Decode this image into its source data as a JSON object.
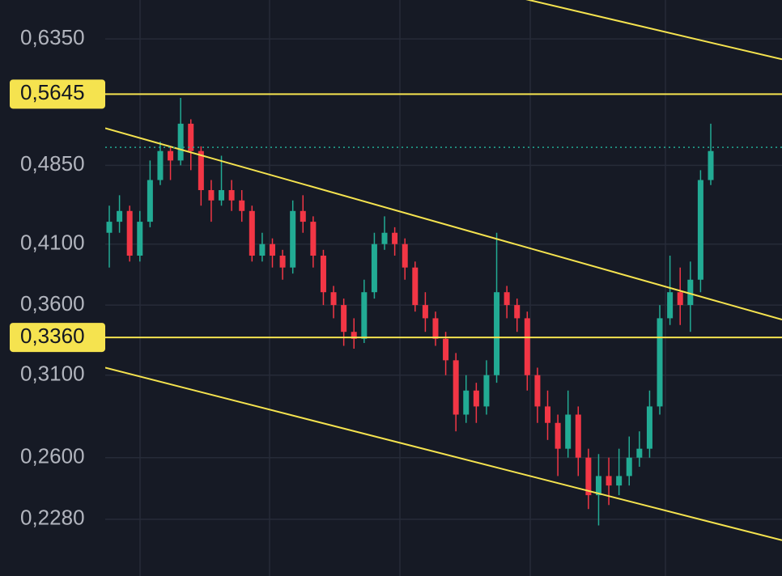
{
  "chart_data": {
    "type": "candlestick",
    "log_scale": true,
    "grid": true,
    "ylim": [
      0.202,
      0.69
    ],
    "yticks": [
      {
        "value": 0.635,
        "label": "0,6350"
      },
      {
        "value": 0.485,
        "label": "0,4850"
      },
      {
        "value": 0.41,
        "label": "0,4100"
      },
      {
        "value": 0.36,
        "label": "0,3600"
      },
      {
        "value": 0.31,
        "label": "0,3100"
      },
      {
        "value": 0.26,
        "label": "0,2600"
      },
      {
        "value": 0.228,
        "label": "0,2280"
      }
    ],
    "categories": [
      null,
      null,
      null,
      null,
      null,
      null,
      null,
      null,
      null,
      null,
      null,
      null,
      null,
      null,
      null,
      null,
      null,
      null,
      null,
      null,
      null,
      null,
      null,
      null,
      null,
      null,
      null,
      null,
      null,
      null,
      null,
      null,
      null,
      null,
      null,
      null,
      null,
      null,
      null,
      null,
      null,
      null,
      null,
      null,
      null,
      null,
      null,
      null,
      null,
      null,
      null,
      null,
      null,
      null,
      null,
      null,
      null,
      null,
      null,
      null
    ],
    "series": [
      {
        "up_color": "#22ab94",
        "down_color": "#f23645",
        "open": [
          0.42,
          0.43,
          0.44,
          0.4,
          0.43,
          0.47,
          0.5,
          0.49,
          0.53,
          0.5,
          0.46,
          0.45,
          0.46,
          0.45,
          0.44,
          0.4,
          0.41,
          0.4,
          0.39,
          0.44,
          0.43,
          0.4,
          0.37,
          0.36,
          0.34,
          0.335,
          0.37,
          0.41,
          0.42,
          0.41,
          0.39,
          0.36,
          0.35,
          0.335,
          0.32,
          0.285,
          0.3,
          0.29,
          0.31,
          0.37,
          0.36,
          0.35,
          0.31,
          0.29,
          0.28,
          0.265,
          0.285,
          0.26,
          0.24,
          0.25,
          0.245,
          0.25,
          0.26,
          0.265,
          0.29,
          0.35,
          0.37,
          0.36,
          0.38,
          0.47
        ],
        "high": [
          0.445,
          0.455,
          0.445,
          0.44,
          0.49,
          0.51,
          0.505,
          0.56,
          0.535,
          0.505,
          0.47,
          0.495,
          0.47,
          0.46,
          0.445,
          0.42,
          0.415,
          0.405,
          0.45,
          0.455,
          0.435,
          0.405,
          0.375,
          0.365,
          0.35,
          0.38,
          0.42,
          0.435,
          0.425,
          0.415,
          0.395,
          0.37,
          0.355,
          0.34,
          0.325,
          0.31,
          0.305,
          0.32,
          0.42,
          0.375,
          0.365,
          0.355,
          0.315,
          0.3,
          0.285,
          0.3,
          0.29,
          0.265,
          0.262,
          0.26,
          0.265,
          0.272,
          0.275,
          0.3,
          0.36,
          0.4,
          0.39,
          0.395,
          0.48,
          0.53
        ],
        "low": [
          0.39,
          0.42,
          0.395,
          0.395,
          0.425,
          0.465,
          0.47,
          0.485,
          0.48,
          0.445,
          0.43,
          0.445,
          0.44,
          0.43,
          0.395,
          0.395,
          0.39,
          0.38,
          0.385,
          0.42,
          0.39,
          0.36,
          0.35,
          0.33,
          0.328,
          0.332,
          0.365,
          0.405,
          0.4,
          0.38,
          0.355,
          0.34,
          0.33,
          0.31,
          0.275,
          0.28,
          0.28,
          0.285,
          0.305,
          0.35,
          0.34,
          0.3,
          0.28,
          0.27,
          0.25,
          0.26,
          0.25,
          0.233,
          0.225,
          0.235,
          0.24,
          0.245,
          0.255,
          0.26,
          0.285,
          0.345,
          0.345,
          0.34,
          0.37,
          0.465
        ],
        "close": [
          0.43,
          0.44,
          0.4,
          0.43,
          0.47,
          0.5,
          0.49,
          0.53,
          0.5,
          0.46,
          0.45,
          0.46,
          0.45,
          0.44,
          0.4,
          0.41,
          0.4,
          0.39,
          0.44,
          0.43,
          0.4,
          0.37,
          0.36,
          0.34,
          0.335,
          0.37,
          0.41,
          0.42,
          0.41,
          0.39,
          0.36,
          0.35,
          0.335,
          0.32,
          0.285,
          0.3,
          0.29,
          0.31,
          0.37,
          0.36,
          0.35,
          0.31,
          0.29,
          0.28,
          0.265,
          0.285,
          0.26,
          0.24,
          0.25,
          0.245,
          0.25,
          0.26,
          0.265,
          0.29,
          0.35,
          0.37,
          0.36,
          0.38,
          0.47,
          0.5
        ]
      }
    ],
    "price_lines": [
      {
        "value": 0.5645,
        "label": "0,5645"
      },
      {
        "value": 0.336,
        "label": "0,3360"
      }
    ],
    "price_line_color": "#f5e34f",
    "trend_lines": [
      {
        "start": 0.853,
        "end": 0.608
      },
      {
        "start": 0.525,
        "end": 0.349
      },
      {
        "start": 0.315,
        "end": 0.218
      }
    ],
    "last_price": 0.504,
    "last_price_color": "#22ab94"
  }
}
